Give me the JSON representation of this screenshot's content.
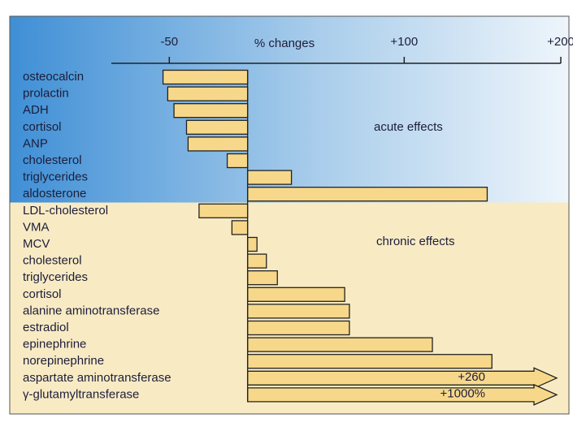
{
  "chart_data": {
    "type": "bar",
    "orientation": "horizontal",
    "x_label": "% changes",
    "annotations": [
      "acute effects",
      "chronic effects"
    ],
    "categories": [
      "osteocalcin",
      "prolactin",
      "ADH",
      "cortisol",
      "ANP",
      "cholesterol",
      "triglycerides",
      "aldosterone",
      "LDL-cholesterol",
      "VMA",
      "MCV",
      "cholesterol",
      "triglycerides",
      "cortisol",
      "alanine aminotransferase",
      "estradiol",
      "epinephrine",
      "norepinephrine",
      "aspartate aminotransferase",
      "γ-glutamyltransferase"
    ],
    "values": [
      -54,
      -51,
      -47,
      -39,
      -38,
      -13,
      28,
      153,
      -31,
      -10,
      6,
      12,
      19,
      62,
      65,
      65,
      118,
      156,
      260,
      1000
    ],
    "value_labels": [
      null,
      null,
      null,
      null,
      null,
      null,
      null,
      null,
      null,
      null,
      null,
      null,
      null,
      null,
      null,
      null,
      null,
      null,
      "+260",
      "+1000%"
    ],
    "color": "#f7d88a",
    "xlim": [
      -87,
      200
    ],
    "xticks": [
      -50,
      {
        "value": 100,
        "label": "+100"
      },
      {
        "value": 200,
        "label": "+200"
      }
    ]
  }
}
